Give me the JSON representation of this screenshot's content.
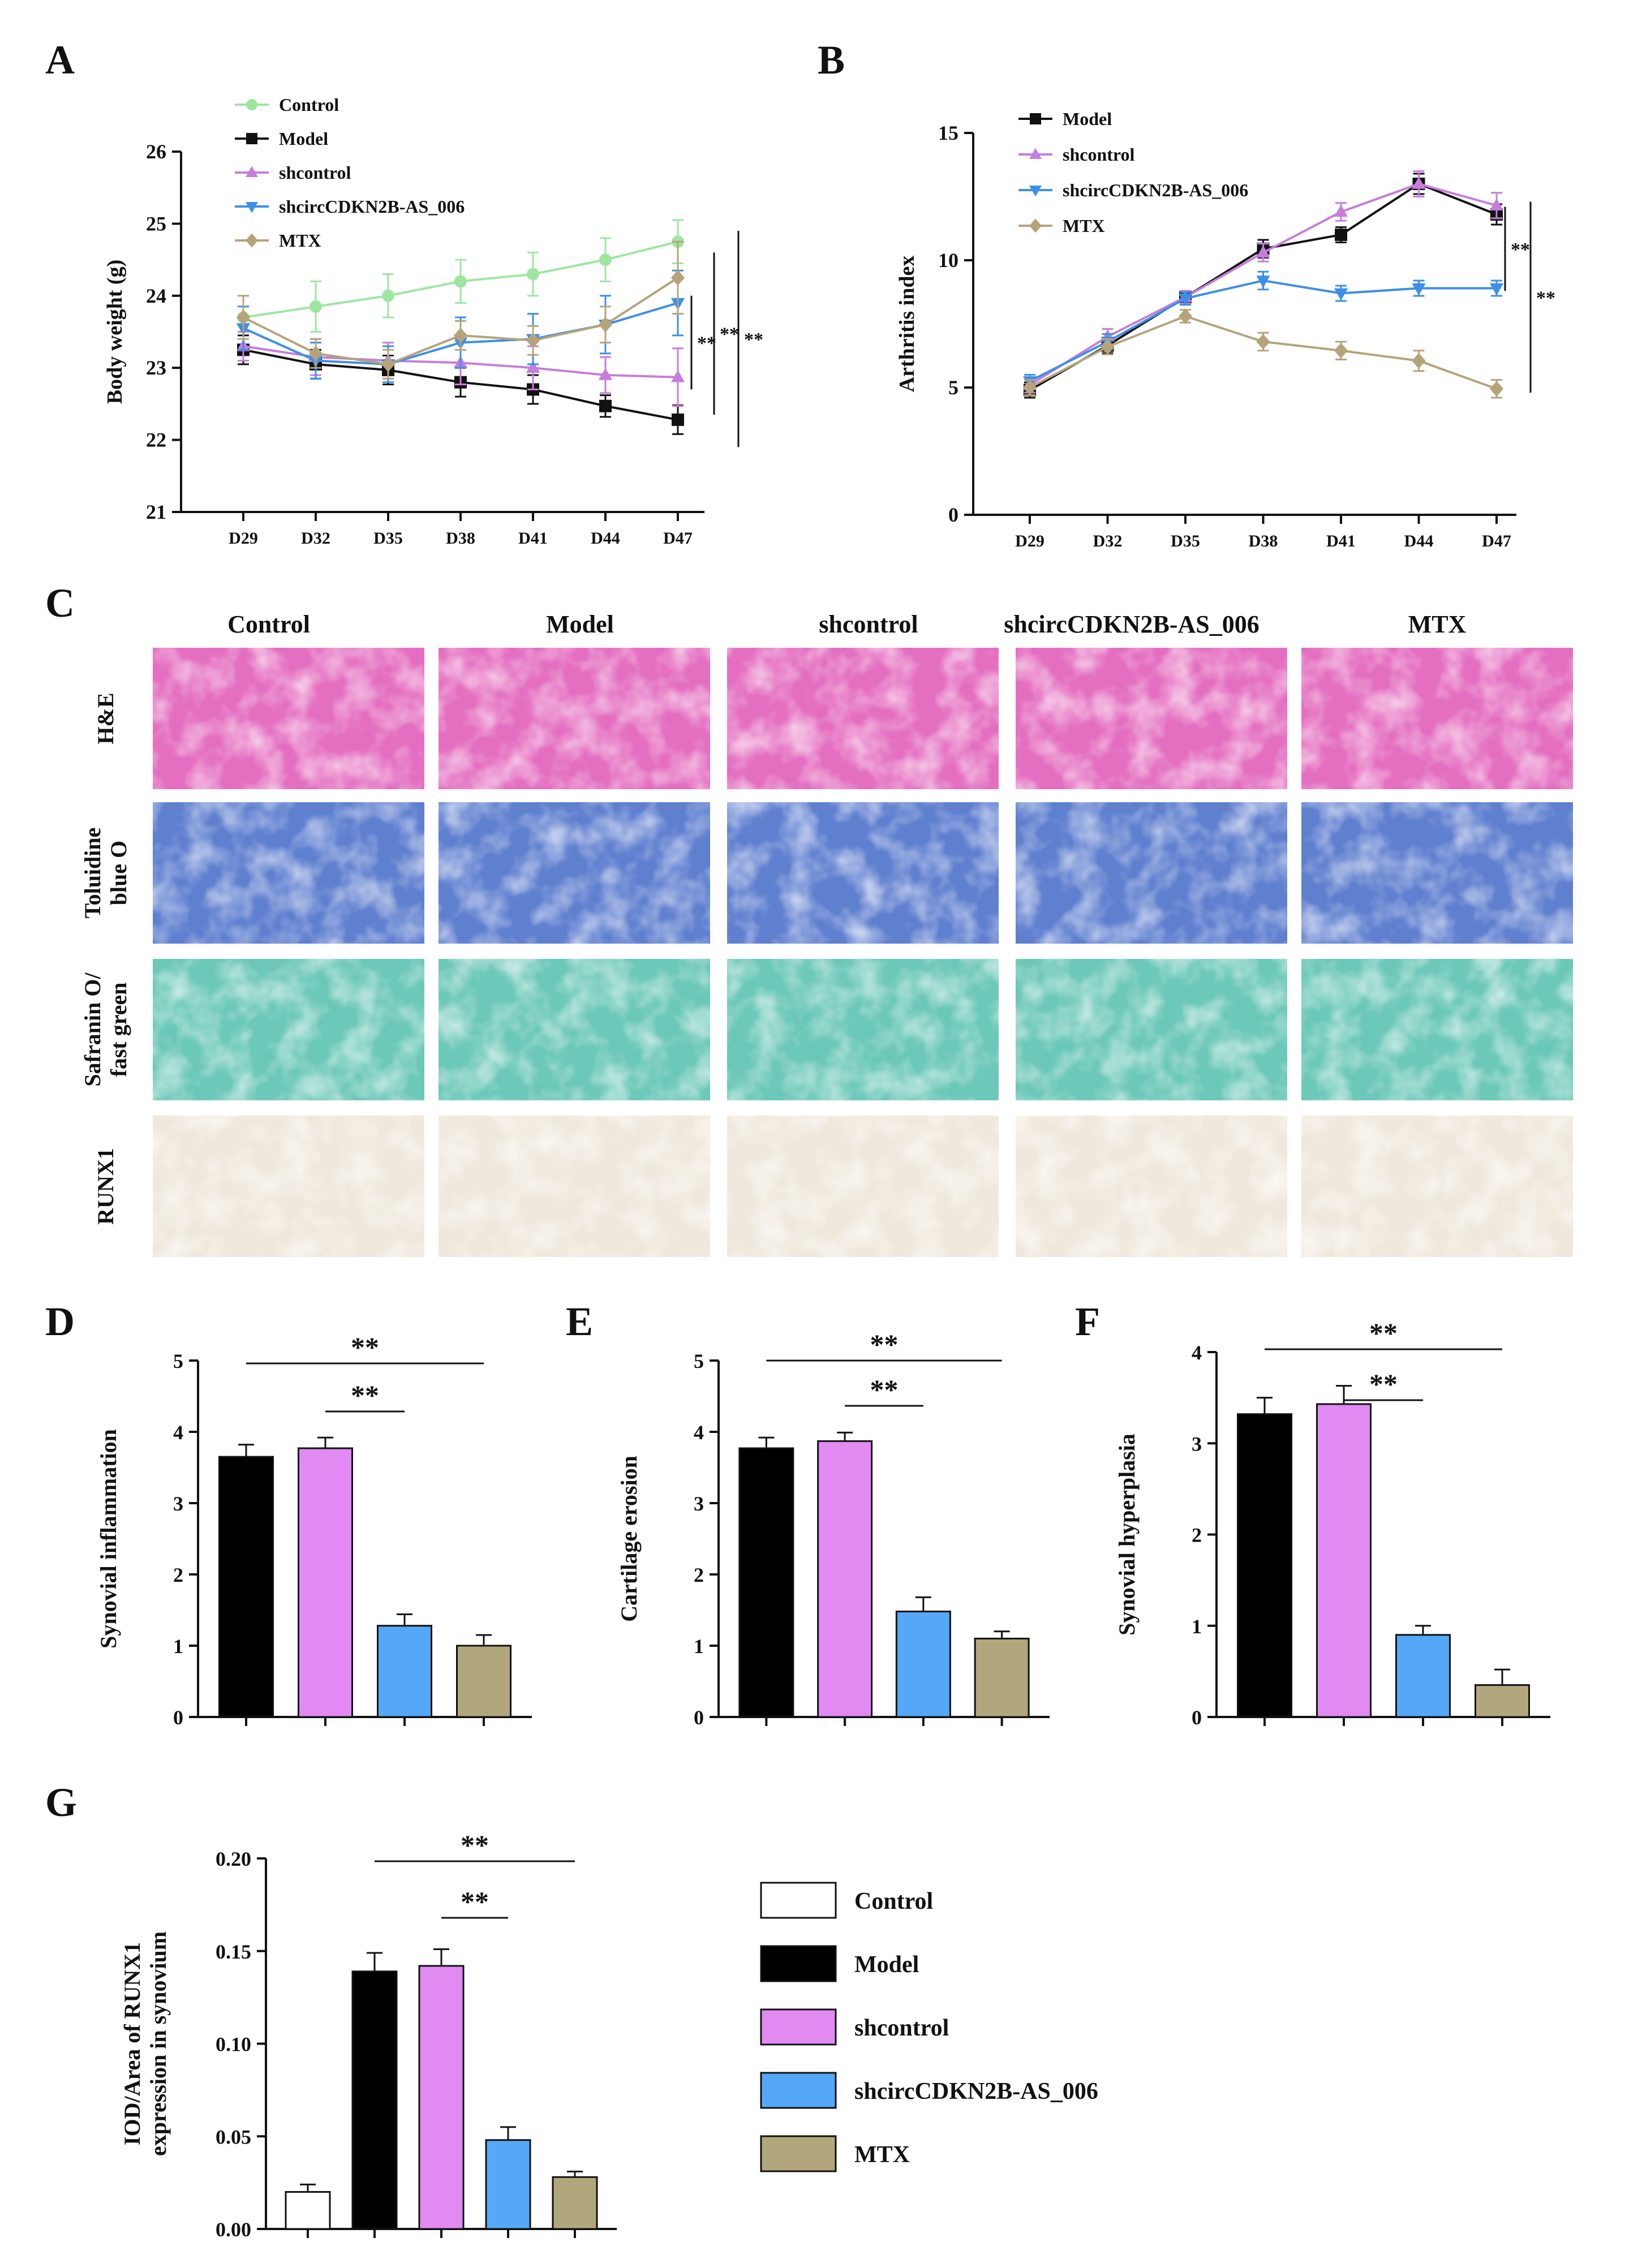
{
  "figure": {
    "panel_labels": [
      "A",
      "B",
      "C",
      "D",
      "E",
      "F",
      "G"
    ]
  },
  "colors": {
    "Control": "#9ee6a0",
    "Model": "#111111",
    "shcontrol": "#c77ddb",
    "shcircCDKN2B-AS_006": "#3d8fe6",
    "MTX": "#b5a47a",
    "bar_Control": "#ffffff",
    "bar_Model": "#000000",
    "bar_shcontrol": "#e08af2",
    "bar_shcircCDKN2B-AS_006": "#55a8f7",
    "bar_MTX": "#b2a77c",
    "he": "#e46fc1",
    "toluidine": "#5f7fcf",
    "safranin": "#6cc8b8",
    "runx1": "#efe8dc"
  },
  "histology": {
    "columns": [
      "Control",
      "Model",
      "shcontrol",
      "shcircCDKN2B-AS_006",
      "MTX"
    ],
    "rows": [
      {
        "label_lines": [
          "H&E"
        ],
        "stain": "he"
      },
      {
        "label_lines": [
          "Toluidine",
          "blue O"
        ],
        "stain": "toluidine"
      },
      {
        "label_lines": [
          "Safranin O/",
          "fast green"
        ],
        "stain": "safranin"
      },
      {
        "label_lines": [
          "RUNX1"
        ],
        "stain": "runx1"
      }
    ]
  },
  "chart_data": [
    {
      "id": "A",
      "type": "line",
      "ylabel": "Body weight (g)",
      "categories": [
        "D29",
        "D32",
        "D35",
        "D38",
        "D41",
        "D44",
        "D47"
      ],
      "ylim": [
        21,
        26
      ],
      "yticks": [
        21,
        22,
        23,
        24,
        25,
        26
      ],
      "series": [
        {
          "name": "Control",
          "marker": "circle",
          "values": [
            23.7,
            23.85,
            24.0,
            24.2,
            24.3,
            24.5,
            24.75
          ],
          "errors": [
            0.3,
            0.35,
            0.3,
            0.3,
            0.3,
            0.3,
            0.3
          ]
        },
        {
          "name": "Model",
          "marker": "square",
          "values": [
            23.25,
            23.05,
            22.97,
            22.8,
            22.7,
            22.47,
            22.28
          ],
          "errors": [
            0.2,
            0.2,
            0.2,
            0.2,
            0.2,
            0.15,
            0.2
          ]
        },
        {
          "name": "shcontrol",
          "marker": "triangle-up",
          "values": [
            23.3,
            23.15,
            23.1,
            23.07,
            23.0,
            22.9,
            22.87
          ],
          "errors": [
            0.2,
            0.25,
            0.25,
            0.3,
            0.3,
            0.25,
            0.4
          ]
        },
        {
          "name": "shcircCDKN2B-AS_006",
          "marker": "triangle-down",
          "values": [
            23.55,
            23.1,
            23.05,
            23.35,
            23.4,
            23.6,
            23.9
          ],
          "errors": [
            0.3,
            0.25,
            0.25,
            0.35,
            0.35,
            0.4,
            0.45
          ]
        },
        {
          "name": "MTX",
          "marker": "diamond",
          "values": [
            23.7,
            23.2,
            23.05,
            23.45,
            23.38,
            23.6,
            24.25
          ],
          "errors": [
            0.3,
            0.2,
            0.2,
            0.2,
            0.2,
            0.25,
            0.5
          ]
        }
      ],
      "significance": [
        "**",
        "**",
        "**"
      ]
    },
    {
      "id": "B",
      "type": "line",
      "ylabel": "Arthritis index",
      "categories": [
        "D29",
        "D32",
        "D35",
        "D38",
        "D41",
        "D44",
        "D47"
      ],
      "ylim": [
        0,
        15
      ],
      "yticks": [
        0,
        5,
        10,
        15
      ],
      "series": [
        {
          "name": "Model",
          "marker": "square",
          "values": [
            4.9,
            6.65,
            8.55,
            10.45,
            11.0,
            13.0,
            11.8
          ],
          "errors": [
            0.3,
            0.3,
            0.25,
            0.35,
            0.3,
            0.4,
            0.4
          ]
        },
        {
          "name": "shcontrol",
          "marker": "triangle-up",
          "values": [
            5.1,
            7.0,
            8.55,
            10.3,
            11.9,
            13.0,
            12.15
          ],
          "errors": [
            0.3,
            0.3,
            0.25,
            0.35,
            0.35,
            0.5,
            0.5
          ]
        },
        {
          "name": "shcircCDKN2B-AS_006",
          "marker": "triangle-down",
          "values": [
            5.25,
            6.8,
            8.5,
            9.2,
            8.7,
            8.9,
            8.9
          ],
          "errors": [
            0.25,
            0.3,
            0.25,
            0.35,
            0.3,
            0.3,
            0.3
          ]
        },
        {
          "name": "MTX",
          "marker": "diamond",
          "values": [
            5.0,
            6.6,
            7.8,
            6.8,
            6.45,
            6.05,
            4.95
          ],
          "errors": [
            0.3,
            0.3,
            0.25,
            0.35,
            0.35,
            0.4,
            0.35
          ]
        }
      ],
      "significance": [
        "**",
        "**"
      ]
    },
    {
      "id": "D",
      "type": "bar",
      "ylabel": "Synovial inflammation",
      "categories": [
        "Model",
        "shcontrol",
        "shcircCDKN2B-AS_006",
        "MTX"
      ],
      "ylim": [
        0,
        5
      ],
      "yticks": [
        0,
        1,
        2,
        3,
        4,
        5
      ],
      "values": [
        3.65,
        3.77,
        1.28,
        1.0
      ],
      "errors": [
        0.17,
        0.15,
        0.16,
        0.15
      ],
      "significance": [
        "**",
        "**"
      ]
    },
    {
      "id": "E",
      "type": "bar",
      "ylabel": "Cartilage erosion",
      "categories": [
        "Model",
        "shcontrol",
        "shcircCDKN2B-AS_006",
        "MTX"
      ],
      "ylim": [
        0,
        5
      ],
      "yticks": [
        0,
        1,
        2,
        3,
        4,
        5
      ],
      "values": [
        3.77,
        3.87,
        1.48,
        1.1
      ],
      "errors": [
        0.15,
        0.12,
        0.2,
        0.1
      ],
      "significance": [
        "**",
        "**"
      ]
    },
    {
      "id": "F",
      "type": "bar",
      "ylabel": "Synovial hyperplasia",
      "categories": [
        "Model",
        "shcontrol",
        "shcircCDKN2B-AS_006",
        "MTX"
      ],
      "ylim": [
        0,
        4
      ],
      "yticks": [
        0,
        1,
        2,
        3,
        4
      ],
      "values": [
        3.32,
        3.43,
        0.9,
        0.35
      ],
      "errors": [
        0.18,
        0.2,
        0.1,
        0.17
      ],
      "significance": [
        "**",
        "**"
      ]
    },
    {
      "id": "G",
      "type": "bar",
      "ylabel_lines": [
        "IOD/Area of RUNX1",
        "expression in synovium"
      ],
      "categories": [
        "Control",
        "Model",
        "shcontrol",
        "shcircCDKN2B-AS_006",
        "MTX"
      ],
      "ylim": [
        0,
        0.2
      ],
      "yticks": [
        "0.00",
        "0.05",
        "0.10",
        "0.15",
        "0.20"
      ],
      "values": [
        0.02,
        0.139,
        0.142,
        0.048,
        0.028
      ],
      "errors": [
        0.004,
        0.01,
        0.009,
        0.007,
        0.003
      ],
      "significance": [
        "**",
        "**"
      ],
      "legend": [
        "Control",
        "Model",
        "shcontrol",
        "shcircCDKN2B-AS_006",
        "MTX"
      ]
    }
  ]
}
